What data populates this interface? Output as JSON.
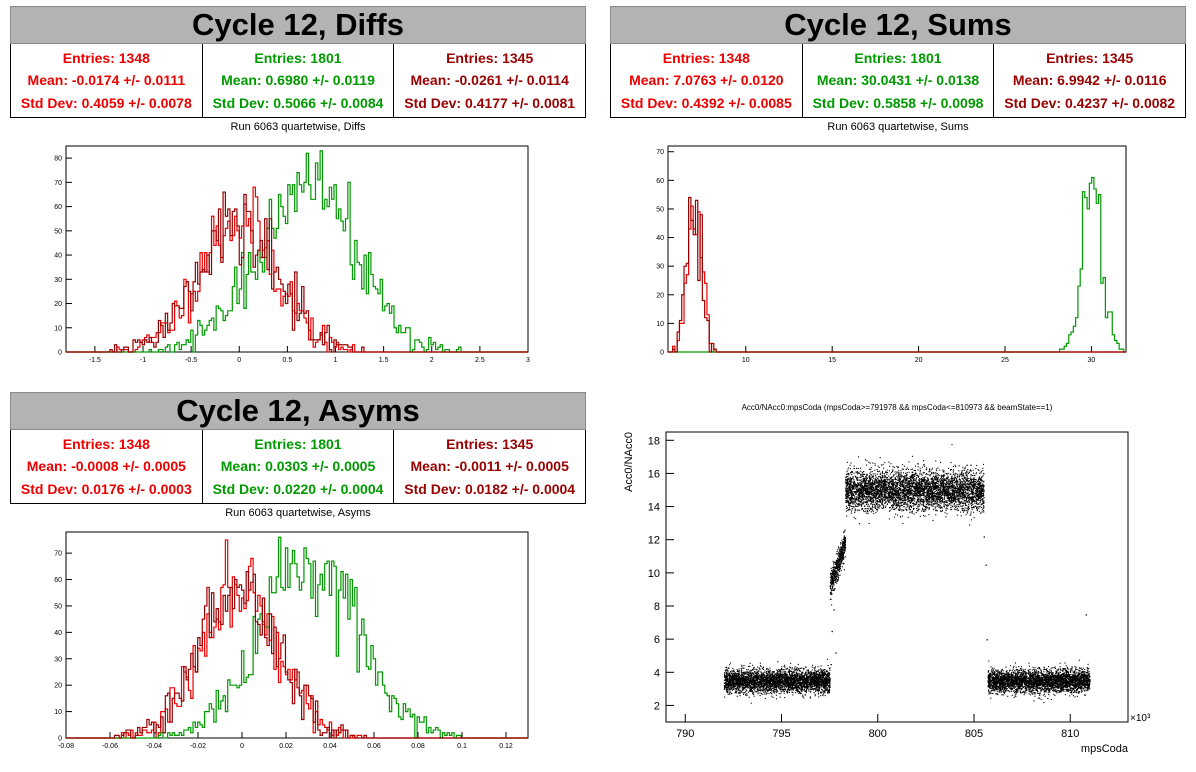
{
  "colors": {
    "red": "#ee0000",
    "green": "#009a00",
    "darkred": "#990000"
  },
  "panels": [
    {
      "banner": "Cycle 12, Diffs",
      "subtitle": "Run 6063 quartetwise, Diffs",
      "stats": [
        {
          "entries": "Entries: 1348",
          "mean": "Mean: -0.0174 +/- 0.0111",
          "std": "Std Dev: 0.4059 +/- 0.0078"
        },
        {
          "entries": "Entries: 1801",
          "mean": "Mean: 0.6980 +/- 0.0119",
          "std": "Std Dev: 0.5066 +/- 0.0084"
        },
        {
          "entries": "Entries: 1345",
          "mean": "Mean: -0.0261 +/- 0.0114",
          "std": "Std Dev: 0.4177 +/- 0.0081"
        }
      ]
    },
    {
      "banner": "Cycle 12, Sums",
      "subtitle": "Run 6063 quartetwise, Sums",
      "stats": [
        {
          "entries": "Entries: 1348",
          "mean": "Mean: 7.0763 +/- 0.0120",
          "std": "Std Dev: 0.4392 +/- 0.0085"
        },
        {
          "entries": "Entries: 1801",
          "mean": "Mean: 30.0431 +/- 0.0138",
          "std": "Std Dev: 0.5858 +/- 0.0098"
        },
        {
          "entries": "Entries: 1345",
          "mean": "Mean: 6.9942 +/- 0.0116",
          "std": "Std Dev: 0.4237 +/- 0.0082"
        }
      ]
    },
    {
      "banner": "Cycle 12, Asyms",
      "subtitle": "Run 6063 quartetwise, Asyms",
      "stats": [
        {
          "entries": "Entries: 1348",
          "mean": "Mean: -0.0008 +/- 0.0005",
          "std": "Std Dev: 0.0176 +/- 0.0003"
        },
        {
          "entries": "Entries: 1801",
          "mean": "Mean: 0.0303 +/- 0.0005",
          "std": "Std Dev: 0.0220 +/- 0.0004"
        },
        {
          "entries": "Entries: 1345",
          "mean": "Mean: -0.0011 +/- 0.0005",
          "std": "Std Dev: 0.0182 +/- 0.0004"
        }
      ]
    }
  ],
  "chart_data": [
    {
      "type": "histogram",
      "name": "diffs",
      "xlim": [
        -1.8,
        3
      ],
      "ylim": [
        0,
        85
      ],
      "xticks": [
        -1.5,
        -1,
        -0.5,
        0,
        0.5,
        1,
        1.5,
        2,
        2.5,
        3
      ],
      "yticks": [
        0,
        10,
        20,
        30,
        40,
        50,
        60,
        70,
        80
      ],
      "series": [
        {
          "name": "Entries: 1348",
          "color": "red",
          "mean": -0.0174,
          "std": 0.4059,
          "peak": 55
        },
        {
          "name": "Entries: 1801",
          "color": "green",
          "mean": 0.698,
          "std": 0.5066,
          "peak": 70
        },
        {
          "name": "Entries: 1345",
          "color": "darkred",
          "mean": -0.0261,
          "std": 0.4177,
          "peak": 55
        }
      ]
    },
    {
      "type": "histogram",
      "name": "sums",
      "xlim": [
        5.5,
        32
      ],
      "ylim": [
        0,
        72
      ],
      "xticks": [
        10,
        15,
        20,
        25,
        30
      ],
      "yticks": [
        0,
        10,
        20,
        30,
        40,
        50,
        60,
        70
      ],
      "series": [
        {
          "name": "Entries: 1348",
          "color": "red",
          "mean": 7.0763,
          "std": 0.4392,
          "peak": 52
        },
        {
          "name": "Entries: 1801",
          "color": "green",
          "mean": 30.0431,
          "std": 0.5858,
          "peak": 62
        },
        {
          "name": "Entries: 1345",
          "color": "darkred",
          "mean": 6.9942,
          "std": 0.4237,
          "peak": 54
        }
      ]
    },
    {
      "type": "histogram",
      "name": "asyms",
      "xlim": [
        -0.08,
        0.13
      ],
      "ylim": [
        0,
        78
      ],
      "xticks": [
        -0.08,
        -0.06,
        -0.04,
        -0.02,
        0,
        0.02,
        0.04,
        0.06,
        0.08,
        0.1,
        0.12
      ],
      "yticks": [
        0,
        10,
        20,
        30,
        40,
        50,
        60,
        70
      ],
      "series": [
        {
          "name": "Entries: 1348",
          "color": "red",
          "mean": -0.0008,
          "std": 0.0176,
          "peak": 55
        },
        {
          "name": "Entries: 1801",
          "color": "green",
          "mean": 0.0303,
          "std": 0.022,
          "peak": 66
        },
        {
          "name": "Entries: 1345",
          "color": "darkred",
          "mean": -0.0011,
          "std": 0.0182,
          "peak": 56
        }
      ]
    },
    {
      "type": "scatter",
      "name": "acc0",
      "title": "Acc0/NAcc0:mpsCoda (mpsCoda>=791978 && mpsCoda<=810973 && beamState==1)",
      "xlabel": "mpsCoda",
      "ylabel": "Acc0/NAcc0",
      "xmultiplier": "×10³",
      "xlim": [
        789,
        813
      ],
      "ylim": [
        1,
        18.5
      ],
      "xticks": [
        790,
        795,
        800,
        805,
        810
      ],
      "yticks": [
        2,
        4,
        6,
        8,
        10,
        12,
        14,
        16,
        18
      ],
      "clusters": [
        {
          "x": [
            792,
            797.5
          ],
          "y_center": 3.5,
          "y_spread": 0.35
        },
        {
          "x": [
            797.5,
            798.3
          ],
          "y_center": 10,
          "y_spread": 0.5
        },
        {
          "x": [
            798.3,
            805.5
          ],
          "y_center": 15,
          "y_spread": 0.6
        },
        {
          "x": [
            805.7,
            811
          ],
          "y_center": 3.5,
          "y_spread": 0.35
        }
      ]
    }
  ]
}
